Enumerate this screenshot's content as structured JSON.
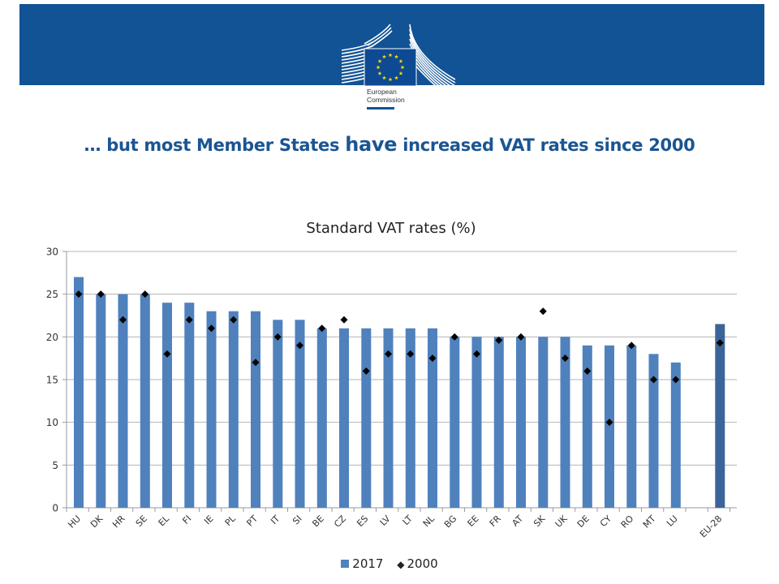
{
  "header": {
    "logo_text_line1": "European",
    "logo_text_line2": "Commission",
    "brand_color": "#115394"
  },
  "slide": {
    "title_part1": "… but most Member States ",
    "title_part2": "have",
    "title_part3": " increased VAT rates since 2000",
    "title_color": "#1b5592"
  },
  "chart_data": {
    "type": "bar",
    "title": "Standard VAT rates (%)",
    "xlabel": "",
    "ylabel": "",
    "ylim": [
      0,
      30
    ],
    "yticks": [
      0,
      5,
      10,
      15,
      20,
      25,
      30
    ],
    "grid": true,
    "legend_position": "bottom",
    "categories": [
      "HU",
      "DK",
      "HR",
      "SE",
      "EL",
      "FI",
      "IE",
      "PL",
      "PT",
      "IT",
      "SI",
      "BE",
      "CZ",
      "ES",
      "LV",
      "LT",
      "NL",
      "BG",
      "EE",
      "FR",
      "AT",
      "SK",
      "UK",
      "DE",
      "CY",
      "RO",
      "MT",
      "LU",
      "EU-28"
    ],
    "series": [
      {
        "name": "2017",
        "kind": "bar",
        "color": "#4f81bd",
        "highlight_color": "#3b6598",
        "values": [
          27,
          25,
          25,
          25,
          24,
          24,
          23,
          23,
          23,
          22,
          22,
          21,
          21,
          21,
          21,
          21,
          21,
          20,
          20,
          20,
          20,
          20,
          20,
          19,
          19,
          19,
          18,
          17,
          21.5
        ]
      },
      {
        "name": "2000",
        "kind": "marker",
        "marker": "diamond",
        "color": "#000000",
        "values": [
          25,
          25,
          22,
          25,
          18,
          22,
          21,
          22,
          17,
          20,
          19,
          21,
          22,
          16,
          18,
          18,
          17.5,
          20,
          18,
          19.6,
          20,
          23,
          17.5,
          16,
          10,
          19,
          15,
          15,
          19.3
        ]
      }
    ]
  }
}
